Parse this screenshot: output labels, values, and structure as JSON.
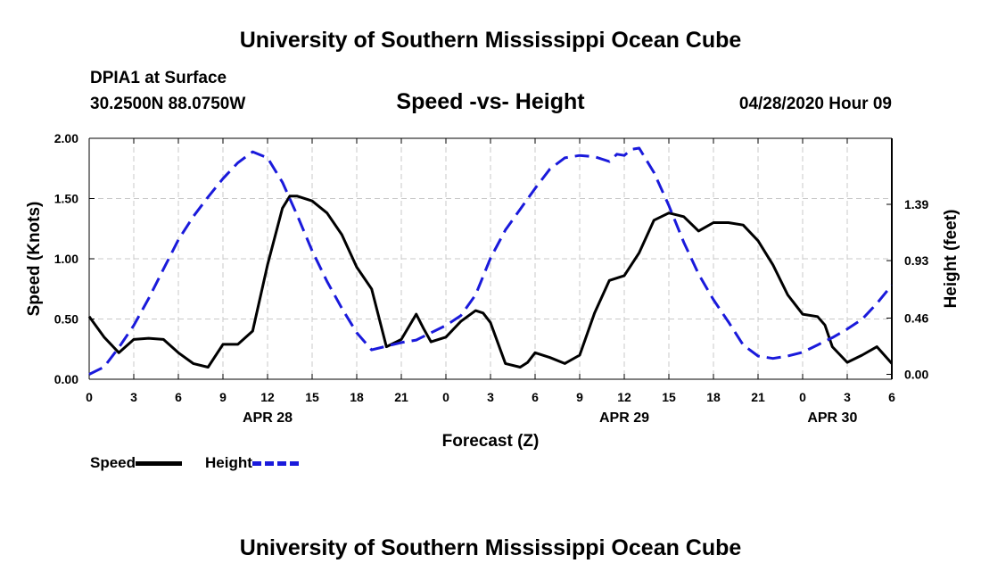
{
  "page": {
    "top_title": "University of Southern Mississippi Ocean Cube",
    "bottom_title": "University of Southern Mississippi Ocean Cube",
    "station": "DPIA1 at Surface",
    "coords": "30.2500N 88.0750W",
    "datetime": "04/28/2020 Hour 09"
  },
  "legend": {
    "speed": "Speed",
    "height": "Height"
  },
  "chart_data": {
    "type": "line",
    "title": "Speed -vs- Height",
    "xlabel": "Forecast (Z)",
    "ylabel": "Speed (Knots)",
    "y2label": "Height (feet)",
    "x_range_hours": [
      0,
      54
    ],
    "ylim": [
      0,
      2
    ],
    "y2lim": [
      -0.04,
      1.93
    ],
    "y_ticks": [
      "0.00",
      "0.50",
      "1.00",
      "1.50",
      "2.00"
    ],
    "y2_ticks": [
      "0.00",
      "0.46",
      "0.93",
      "1.39"
    ],
    "y2_tick_values": [
      0.0,
      0.46,
      0.93,
      1.39
    ],
    "x_tick_labels": [
      "0",
      "3",
      "6",
      "9",
      "12",
      "15",
      "18",
      "21",
      "0",
      "3",
      "6",
      "9",
      "12",
      "15",
      "18",
      "21",
      "0",
      "3",
      "6"
    ],
    "date_labels": [
      {
        "label": "APR 28",
        "hour": 12
      },
      {
        "label": "APR 29",
        "hour": 36
      },
      {
        "label": "APR 30",
        "hour": 50
      }
    ],
    "grid": true,
    "colors": {
      "speed": "#000000",
      "height": "#1a1adb"
    },
    "series": [
      {
        "name": "Speed",
        "axis": "left",
        "style": "solid",
        "x": [
          0,
          1,
          2,
          3,
          4,
          5,
          6,
          7,
          8,
          9,
          10,
          11,
          12,
          13,
          13.5,
          14,
          15,
          16,
          17,
          18,
          19,
          20,
          21,
          22,
          22.5,
          23,
          24,
          25,
          26,
          26.5,
          27,
          28,
          29,
          29.5,
          30,
          31,
          32,
          33,
          34,
          35,
          36,
          37,
          38,
          39,
          40,
          41,
          42,
          43,
          44,
          45,
          46,
          47,
          48,
          49,
          49.5,
          50,
          51,
          52,
          53,
          54
        ],
        "values": [
          0.52,
          0.35,
          0.22,
          0.33,
          0.34,
          0.33,
          0.22,
          0.13,
          0.1,
          0.29,
          0.29,
          0.4,
          0.95,
          1.42,
          1.52,
          1.52,
          1.48,
          1.38,
          1.2,
          0.93,
          0.75,
          0.27,
          0.33,
          0.54,
          0.42,
          0.31,
          0.35,
          0.48,
          0.57,
          0.55,
          0.47,
          0.13,
          0.1,
          0.14,
          0.22,
          0.18,
          0.13,
          0.2,
          0.55,
          0.82,
          0.86,
          1.05,
          1.32,
          1.38,
          1.35,
          1.23,
          1.3,
          1.3,
          1.28,
          1.15,
          0.95,
          0.7,
          0.54,
          0.52,
          0.45,
          0.27,
          0.14,
          0.2,
          0.27,
          0.13
        ]
      },
      {
        "name": "Height",
        "axis": "right",
        "style": "dashed",
        "x": [
          0,
          1,
          2,
          3,
          4,
          5,
          6,
          7,
          8,
          9,
          10,
          11,
          12,
          13,
          14,
          15,
          16,
          17,
          18,
          19,
          20,
          21,
          22,
          23,
          24,
          25,
          26,
          27,
          28,
          29,
          30,
          31,
          32,
          33,
          34,
          35,
          35.5,
          36,
          36.5,
          37,
          38,
          39,
          40,
          41,
          42,
          43,
          44,
          45,
          46,
          47,
          48,
          49,
          50,
          51,
          52,
          53,
          54
        ],
        "values": [
          0.0,
          0.06,
          0.22,
          0.4,
          0.62,
          0.86,
          1.1,
          1.29,
          1.45,
          1.6,
          1.73,
          1.82,
          1.77,
          1.57,
          1.3,
          1.01,
          0.76,
          0.54,
          0.34,
          0.2,
          0.23,
          0.26,
          0.28,
          0.34,
          0.4,
          0.48,
          0.65,
          0.95,
          1.18,
          1.35,
          1.52,
          1.68,
          1.77,
          1.79,
          1.78,
          1.74,
          1.8,
          1.79,
          1.84,
          1.85,
          1.65,
          1.38,
          1.08,
          0.82,
          0.61,
          0.43,
          0.24,
          0.15,
          0.13,
          0.15,
          0.18,
          0.24,
          0.3,
          0.37,
          0.45,
          0.58,
          0.73
        ]
      }
    ]
  }
}
